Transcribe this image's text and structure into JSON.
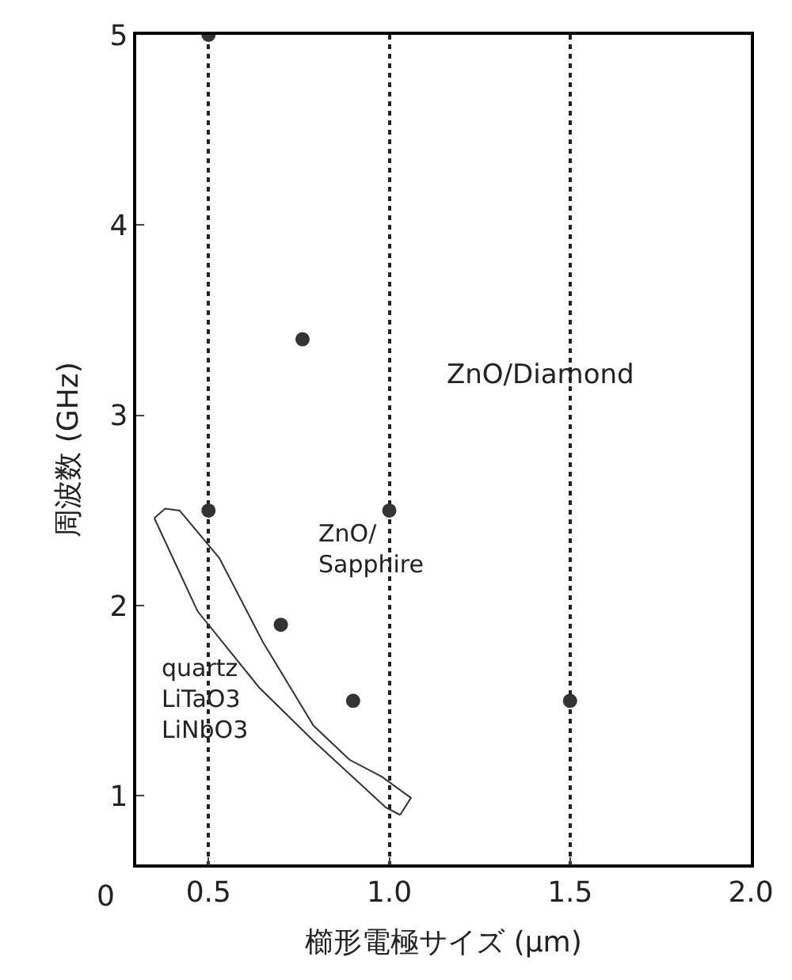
{
  "chart_data": {
    "type": "scatter",
    "xlabel": "櫛形電極サイズ (μm)",
    "ylabel": "周波数 (GHz)",
    "xlim": [
      0.3,
      2.0
    ],
    "xticks": [
      0.5,
      {
        "value": 1,
        "label": "1.0"
      },
      1.5,
      {
        "value": 2,
        "label": "2.0"
      }
    ],
    "ylim": [
      0.64,
      5
    ],
    "yticks": [
      1,
      2,
      3,
      4,
      5
    ],
    "grid": "x",
    "line_style": "solid",
    "legend": false,
    "series": [
      {
        "color": "#333333",
        "marker": "circle",
        "x": [
          0.5,
          0.76,
          0.5,
          1.0,
          0.7,
          0.9,
          1.5
        ],
        "values": [
          5.0,
          3.4,
          2.5,
          2.5,
          1.9,
          1.5,
          1.5
        ]
      },
      {
        "type": "line",
        "color": "#333333",
        "marker": "none",
        "x": [
          0.35,
          0.47,
          0.64,
          0.79,
          0.99,
          1.03
        ],
        "values": [
          2.46,
          1.97,
          1.57,
          1.29,
          0.94,
          0.9
        ]
      },
      {
        "type": "line",
        "color": "#333333",
        "marker": "none",
        "x": [
          0.35,
          0.38,
          0.42,
          0.53,
          0.65,
          0.79,
          0.89,
          0.98,
          1.06,
          1.03
        ],
        "values": [
          2.46,
          2.51,
          2.5,
          2.25,
          1.81,
          1.37,
          1.19,
          1.1,
          0.99,
          0.9
        ]
      }
    ],
    "annotations": [
      "ZnO/Diamond",
      "ZnO/\nSapphire",
      "quartz\nLiTaO3\nLiNbO3",
      "0"
    ]
  }
}
